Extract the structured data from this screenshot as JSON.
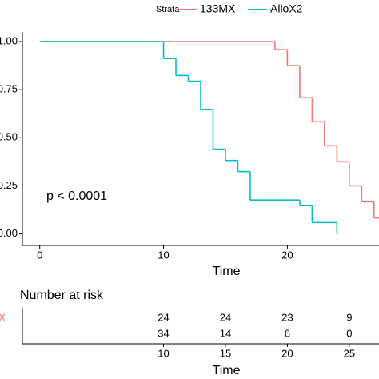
{
  "chart_data": {
    "type": "step",
    "legend_title": "Strata",
    "annotation": "p < 0.0001",
    "x_label": "Time",
    "xlim": [
      -1.4,
      27.4
    ],
    "xticks": [
      0,
      10,
      20
    ],
    "ylim": [
      -0.06,
      1.05
    ],
    "yticks": [
      {
        "value": 1,
        "label": "1.00"
      },
      {
        "value": 0.75,
        "label": "0.75"
      },
      {
        "value": 0.5,
        "label": "0.50"
      },
      {
        "value": 0.25,
        "label": "0.25"
      },
      {
        "value": 0,
        "label": "0.00"
      }
    ],
    "series": [
      {
        "name": "133MX",
        "color": "#F8766D",
        "x": [
          0,
          19,
          20,
          21,
          22,
          23,
          24,
          25,
          26,
          27
        ],
        "values": [
          1,
          0.958,
          0.875,
          0.708,
          0.583,
          0.458,
          0.375,
          0.25,
          0.167,
          0.083
        ]
      },
      {
        "name": "AlloX2",
        "color": "#00BFC4",
        "x": [
          0,
          10,
          11,
          12,
          13,
          14,
          15,
          16,
          17,
          21,
          22,
          24
        ],
        "values": [
          1,
          0.912,
          0.824,
          0.794,
          0.647,
          0.441,
          0.382,
          0.324,
          0.176,
          0.147,
          0.059,
          0
        ]
      }
    ],
    "risk_table": {
      "title": "Number at risk",
      "x_label": "Time",
      "times": [
        10,
        15,
        20,
        25
      ],
      "rows": [
        [
          24,
          24,
          23,
          9
        ],
        [
          34,
          14,
          6,
          0
        ]
      ]
    }
  }
}
